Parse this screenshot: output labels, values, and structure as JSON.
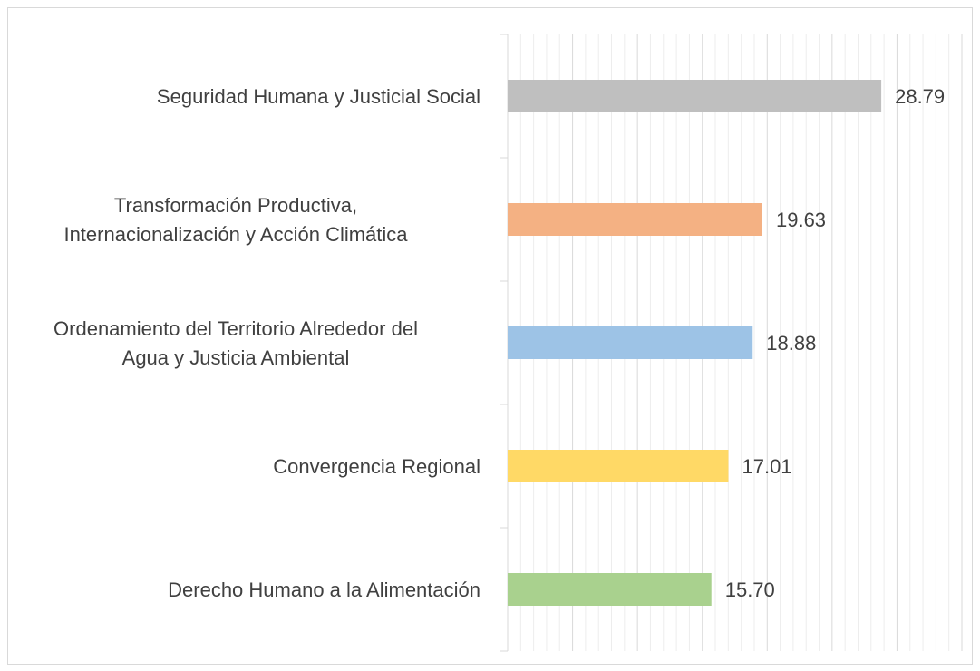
{
  "chart_data": {
    "type": "bar",
    "orientation": "horizontal",
    "categories": [
      "Seguridad Humana y Justicial Social",
      "Transformación Productiva,\nInternacionalización y Acción Climática",
      "Ordenamiento del Territorio Alrededor del\nAgua y Justicia Ambiental",
      "Convergencia Regional",
      "Derecho Humano a la Alimentación"
    ],
    "values": [
      28.79,
      19.63,
      18.88,
      17.01,
      15.7
    ],
    "value_labels": [
      "28.79",
      "19.63",
      "18.88",
      "17.01",
      "15.70"
    ],
    "colors": [
      "#bfbfbf",
      "#f4b183",
      "#9dc3e6",
      "#ffd966",
      "#a9d18e"
    ],
    "xlim": [
      0,
      35
    ],
    "xticks": [
      0,
      5,
      10,
      15,
      20,
      25,
      30,
      35
    ],
    "grid": true,
    "minor_per_major": 5
  }
}
